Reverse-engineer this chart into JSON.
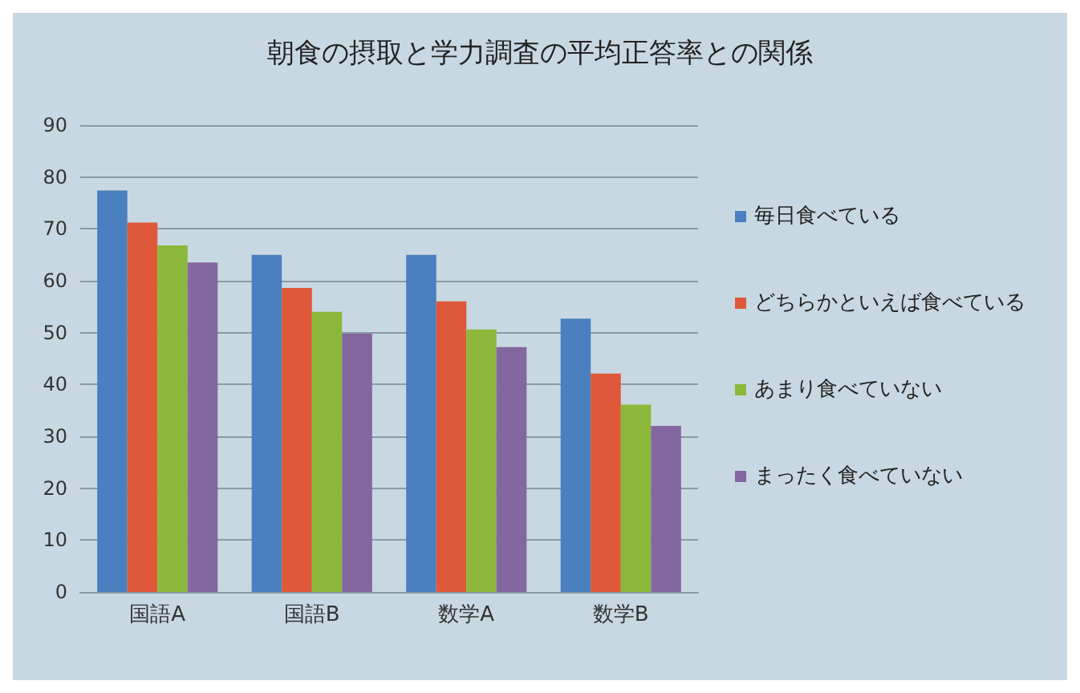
{
  "chart_data": {
    "type": "bar",
    "title": "朝食の摂取と学力調査の平均正答率との関係",
    "categories": [
      "国語A",
      "国語B",
      "数学A",
      "数学B"
    ],
    "series": [
      {
        "name": "毎日食べている",
        "color": "#4a7fc0",
        "values": [
          77.4,
          65,
          65,
          52.7
        ]
      },
      {
        "name": "どちらかといえば食べている",
        "color": "#e0583a",
        "values": [
          71.2,
          58.6,
          56,
          42.1
        ]
      },
      {
        "name": "あまり食べていない",
        "color": "#8bb83a",
        "values": [
          66.8,
          54,
          50.6,
          36.1
        ]
      },
      {
        "name": "まったく食べていない",
        "color": "#8466a0",
        "values": [
          63.5,
          49.8,
          47.2,
          32
        ]
      }
    ],
    "ylim": [
      0,
      90
    ],
    "yticks": [
      0,
      10,
      20,
      30,
      40,
      50,
      60,
      70,
      80,
      90
    ],
    "grid": "y",
    "legend": "right"
  }
}
